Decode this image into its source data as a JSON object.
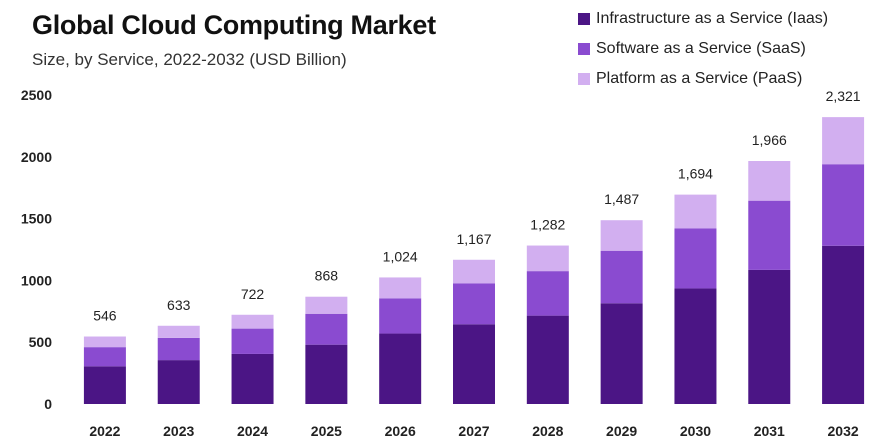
{
  "chart_data": {
    "type": "bar",
    "stacked": true,
    "title": "Global Cloud Computing Market",
    "subtitle": "Size, by Service, 2022-2032 (USD Billion)",
    "xlabel": "",
    "ylabel": "",
    "ylim": [
      0,
      2500
    ],
    "yticks": [
      "0",
      "500",
      "1000",
      "1500",
      "2000",
      "2500"
    ],
    "categories": [
      "2022",
      "2023",
      "2024",
      "2025",
      "2026",
      "2027",
      "2028",
      "2029",
      "2030",
      "2031",
      "2032"
    ],
    "totals": [
      546,
      633,
      722,
      868,
      1024,
      1167,
      1282,
      1487,
      1694,
      1966,
      2321
    ],
    "total_labels": [
      "546",
      "633",
      "722",
      "868",
      "1,024",
      "1,167",
      "1,282",
      "1,487",
      "1,694",
      "1,966",
      "2,321"
    ],
    "series": [
      {
        "name": "Infrastructure as a Service (Iaas)",
        "color": "#4b1585",
        "values": [
          305,
          355,
          405,
          480,
          570,
          645,
          715,
          815,
          935,
          1085,
          1280
        ]
      },
      {
        "name": "Software as a Service (SaaS)",
        "color": "#8a4bd0",
        "values": [
          155,
          180,
          205,
          250,
          285,
          330,
          360,
          425,
          485,
          560,
          660
        ]
      },
      {
        "name": "Platform as a Service (PaaS)",
        "color": "#d2aff0",
        "values": [
          86,
          98,
          112,
          138,
          169,
          192,
          207,
          247,
          274,
          321,
          381
        ]
      }
    ],
    "legend_position": "top-right"
  }
}
